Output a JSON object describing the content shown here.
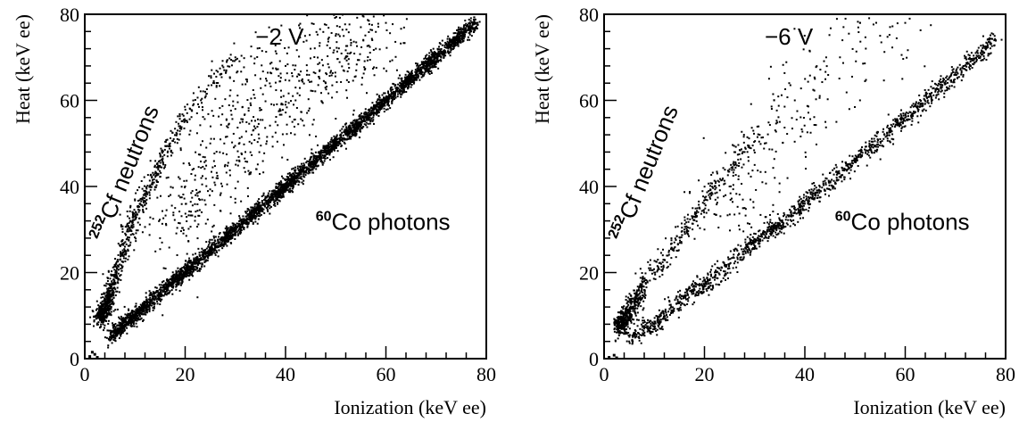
{
  "chart_data": [
    {
      "type": "scatter",
      "title": "",
      "xlabel": "Ionization (keV ee)",
      "ylabel": "Heat (keV ee)",
      "xlim": [
        0,
        80
      ],
      "ylim": [
        0,
        80
      ],
      "x_ticks": [
        "0",
        "20",
        "40",
        "60",
        "80"
      ],
      "y_ticks": [
        "0",
        "20",
        "40",
        "60",
        "80"
      ],
      "grid": false,
      "legend": "none",
      "series": [
        {
          "population": "photons",
          "points": [
            [
              5,
              5
            ],
            [
              8,
              8
            ],
            [
              10,
              10
            ],
            [
              12,
              12
            ],
            [
              15,
              15
            ],
            [
              18,
              18
            ],
            [
              20,
              20
            ],
            [
              22,
              22
            ],
            [
              25,
              25
            ],
            [
              28,
              28
            ],
            [
              30,
              30
            ],
            [
              33,
              33
            ],
            [
              35,
              35
            ],
            [
              38,
              38
            ],
            [
              40,
              40
            ],
            [
              42,
              42
            ],
            [
              45,
              45
            ],
            [
              48,
              48
            ],
            [
              50,
              50
            ],
            [
              53,
              53
            ],
            [
              55,
              55
            ],
            [
              58,
              58
            ],
            [
              60,
              60
            ],
            [
              63,
              63
            ],
            [
              65,
              65
            ],
            [
              68,
              68
            ],
            [
              70,
              70
            ],
            [
              73,
              73
            ],
            [
              75,
              75
            ],
            [
              78,
              78
            ]
          ]
        },
        {
          "population": "neutrons",
          "points": [
            [
              3,
              9
            ],
            [
              4,
              12
            ],
            [
              5,
              14
            ],
            [
              5,
              17
            ],
            [
              6,
              19
            ],
            [
              7,
              23
            ],
            [
              8,
              26
            ],
            [
              9,
              30
            ],
            [
              10,
              33
            ],
            [
              11,
              36
            ],
            [
              12,
              38
            ],
            [
              13,
              40
            ],
            [
              14,
              43
            ],
            [
              15,
              46
            ],
            [
              17,
              50
            ],
            [
              19,
              54
            ],
            [
              21,
              58
            ],
            [
              24,
              62
            ],
            [
              27,
              66
            ],
            [
              30,
              70
            ]
          ]
        },
        {
          "population": "scatter",
          "points": [
            [
              20,
              40
            ],
            [
              22,
              33
            ],
            [
              25,
              50
            ],
            [
              28,
              45
            ],
            [
              30,
              58
            ],
            [
              32,
              48
            ],
            [
              35,
              65
            ],
            [
              38,
              55
            ],
            [
              40,
              68
            ],
            [
              42,
              60
            ],
            [
              45,
              72
            ],
            [
              48,
              64
            ],
            [
              50,
              75
            ],
            [
              52,
              70
            ],
            [
              55,
              77
            ],
            [
              58,
              72
            ],
            [
              60,
              78
            ],
            [
              15,
              28
            ],
            [
              18,
              35
            ],
            [
              27,
              38
            ]
          ]
        }
      ],
      "annotations": [
        {
          "text": "−2 V",
          "x": 34,
          "y": 73
        },
        {
          "sup": "252",
          "text": "Cf neutrons"
        },
        {
          "sup": "60",
          "text": "Co photons",
          "x": 46,
          "y": 30
        }
      ],
      "low_energy_cluster": [
        [
          1,
          0.5
        ],
        [
          2,
          1
        ],
        [
          2.5,
          0.3
        ],
        [
          1.5,
          1.5
        ]
      ]
    },
    {
      "type": "scatter",
      "title": "",
      "xlabel": "Ionization (keV ee)",
      "ylabel": "Heat (keV ee)",
      "xlim": [
        0,
        80
      ],
      "ylim": [
        0,
        80
      ],
      "x_ticks": [
        "0",
        "20",
        "40",
        "60",
        "80"
      ],
      "y_ticks": [
        "0",
        "20",
        "40",
        "60",
        "80"
      ],
      "grid": false,
      "legend": "none",
      "series": [
        {
          "population": "photons",
          "points": [
            [
              5,
              4
            ],
            [
              8,
              7
            ],
            [
              10,
              8
            ],
            [
              12,
              10
            ],
            [
              15,
              13
            ],
            [
              18,
              16
            ],
            [
              20,
              17
            ],
            [
              22,
              19
            ],
            [
              25,
              22
            ],
            [
              28,
              25
            ],
            [
              30,
              27
            ],
            [
              33,
              30
            ],
            [
              35,
              31
            ],
            [
              38,
              34
            ],
            [
              40,
              36
            ],
            [
              42,
              38
            ],
            [
              45,
              41
            ],
            [
              48,
              44
            ],
            [
              50,
              46
            ],
            [
              53,
              49
            ],
            [
              55,
              51
            ],
            [
              58,
              54
            ],
            [
              60,
              56
            ],
            [
              63,
              59
            ],
            [
              65,
              61
            ],
            [
              68,
              64
            ],
            [
              70,
              66
            ],
            [
              73,
              69
            ],
            [
              75,
              71
            ],
            [
              78,
              74
            ]
          ]
        },
        {
          "population": "neutrons",
          "points": [
            [
              3,
              7
            ],
            [
              4,
              9
            ],
            [
              5,
              11
            ],
            [
              6,
              13
            ],
            [
              7,
              15
            ],
            [
              8,
              18
            ],
            [
              10,
              20
            ],
            [
              12,
              23
            ],
            [
              14,
              27
            ],
            [
              16,
              30
            ],
            [
              18,
              33
            ],
            [
              20,
              36
            ],
            [
              22,
              40
            ],
            [
              25,
              44
            ],
            [
              28,
              48
            ],
            [
              31,
              52
            ]
          ]
        },
        {
          "population": "scatter",
          "points": [
            [
              20,
              30
            ],
            [
              25,
              40
            ],
            [
              28,
              35
            ],
            [
              30,
              45
            ],
            [
              32,
              50
            ],
            [
              35,
              55
            ],
            [
              38,
              60
            ],
            [
              42,
              65
            ],
            [
              47,
              70
            ],
            [
              51,
              78
            ],
            [
              55,
              75
            ],
            [
              60,
              78
            ],
            [
              34,
              42
            ],
            [
              27,
              30
            ]
          ]
        }
      ],
      "annotations": [
        {
          "text": "−6 V",
          "x": 32,
          "y": 73
        },
        {
          "sup": "252",
          "text": "Cf neutrons"
        },
        {
          "sup": "60",
          "text": "Co photons",
          "x": 46,
          "y": 30
        }
      ],
      "low_energy_cluster": [
        [
          1,
          0.3
        ],
        [
          2,
          0.8
        ],
        [
          2.5,
          0.2
        ]
      ]
    }
  ]
}
